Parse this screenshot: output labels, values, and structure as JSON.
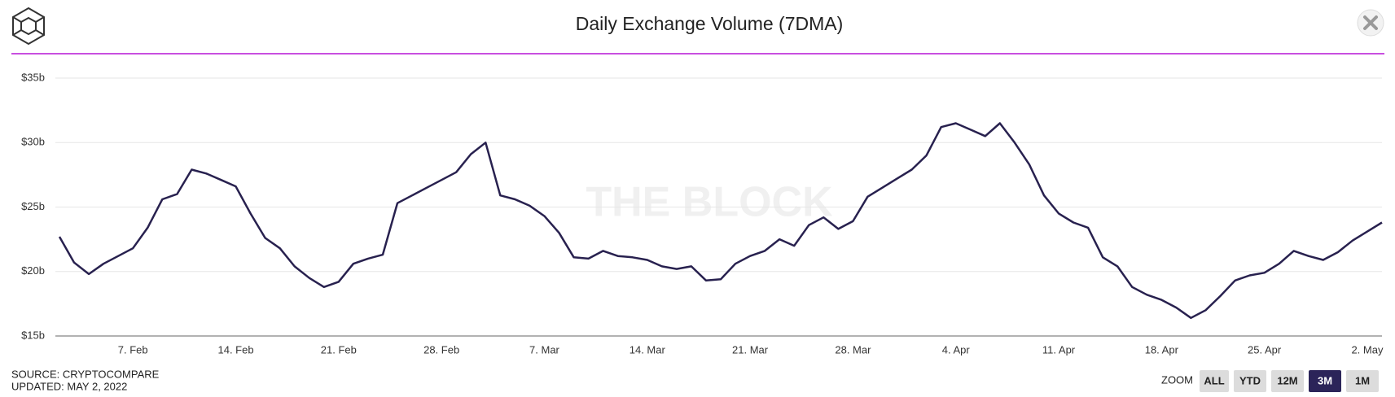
{
  "chart_data": {
    "type": "line",
    "title": "Daily Exchange Volume (7DMA)",
    "watermark": "THE BLOCK",
    "source": "SOURCE: CRYPTOCOMPARE",
    "updated": "UPDATED: MAY 2, 2022",
    "zoom_label": "ZOOM",
    "zoom_buttons": [
      "ALL",
      "YTD",
      "12M",
      "3M",
      "1M"
    ],
    "active_zoom_index": 3,
    "categories": [
      null,
      null,
      null,
      null,
      null,
      "7. Feb",
      null,
      null,
      null,
      null,
      null,
      null,
      "14. Feb",
      null,
      null,
      null,
      null,
      null,
      null,
      "21. Feb",
      null,
      null,
      null,
      null,
      null,
      null,
      "28. Feb",
      null,
      null,
      null,
      null,
      null,
      null,
      "7. Mar",
      null,
      null,
      null,
      null,
      null,
      null,
      "14. Mar",
      null,
      null,
      null,
      null,
      null,
      null,
      "21. Mar",
      null,
      null,
      null,
      null,
      null,
      null,
      "28. Mar",
      null,
      null,
      null,
      null,
      null,
      null,
      "4. Apr",
      null,
      null,
      null,
      null,
      null,
      null,
      "11. Apr",
      null,
      null,
      null,
      null,
      null,
      null,
      "18. Apr",
      null,
      null,
      null,
      null,
      null,
      null,
      "25. Apr",
      null,
      null,
      null,
      null,
      null,
      null,
      "2. May",
      null
    ],
    "series": [
      {
        "color": "#28214f",
        "values": [
          22.7,
          20.7,
          19.8,
          20.6,
          21.2,
          21.8,
          23.4,
          25.6,
          26.0,
          27.9,
          27.6,
          27.1,
          26.6,
          24.5,
          22.6,
          21.8,
          20.4,
          19.5,
          18.8,
          19.2,
          20.6,
          21.0,
          21.3,
          25.3,
          25.9,
          26.5,
          27.1,
          27.7,
          29.1,
          30.0,
          25.9,
          25.6,
          25.1,
          24.3,
          23.0,
          21.1,
          21.0,
          21.6,
          21.2,
          21.1,
          20.9,
          20.4,
          20.2,
          20.4,
          19.3,
          19.4,
          20.6,
          21.2,
          21.6,
          22.5,
          22.0,
          23.6,
          24.2,
          23.3,
          23.9,
          25.8,
          26.5,
          27.2,
          27.9,
          29.0,
          31.2,
          31.5,
          31.0,
          30.5,
          31.5,
          30.0,
          28.3,
          25.9,
          24.5,
          23.8,
          23.4,
          21.1,
          20.4,
          18.8,
          18.2,
          17.8,
          17.2,
          16.4,
          17.0,
          18.1,
          19.3,
          19.7,
          19.9,
          20.6,
          21.6,
          21.2,
          20.9,
          21.5,
          22.4,
          23.1,
          23.8
        ]
      }
    ],
    "ylim": [
      15,
      35
    ],
    "yticks": [
      {
        "value": 15,
        "label": "$15b"
      },
      {
        "value": 20,
        "label": "$20b"
      },
      {
        "value": 25,
        "label": "$25b"
      },
      {
        "value": 30,
        "label": "$30b"
      },
      {
        "value": 35,
        "label": "$35b"
      }
    ],
    "grid": true
  }
}
